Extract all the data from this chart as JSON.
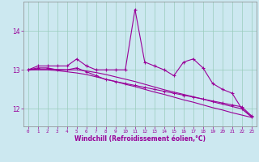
{
  "xlabel": "Windchill (Refroidissement éolien,°C)",
  "bg_color": "#cce8f0",
  "line_color": "#990099",
  "grid_color": "#99ccbb",
  "yticks": [
    12,
    13,
    14
  ],
  "ylim": [
    11.55,
    14.75
  ],
  "xlim": [
    -0.5,
    23.5
  ],
  "xtick_labels": [
    "0",
    "1",
    "2",
    "3",
    "4",
    "5",
    "6",
    "7",
    "8",
    "9",
    "10",
    "11",
    "12",
    "13",
    "14",
    "15",
    "16",
    "17",
    "18",
    "19",
    "20",
    "21",
    "22",
    "23"
  ],
  "line1": [
    13.0,
    13.1,
    13.1,
    13.1,
    13.1,
    13.28,
    13.1,
    13.0,
    13.0,
    13.0,
    13.0,
    14.55,
    13.2,
    13.1,
    13.0,
    12.85,
    13.2,
    13.28,
    13.05,
    12.65,
    12.5,
    12.4,
    12.0,
    11.8
  ],
  "line2": [
    13.0,
    13.05,
    13.05,
    13.0,
    13.0,
    13.05,
    12.95,
    12.85,
    12.75,
    12.7,
    12.65,
    12.6,
    12.55,
    12.5,
    12.45,
    12.4,
    12.35,
    12.3,
    12.25,
    12.2,
    12.15,
    12.1,
    12.05,
    11.82
  ],
  "line3": [
    13.0,
    13.0,
    13.0,
    12.98,
    12.95,
    12.92,
    12.88,
    12.82,
    12.76,
    12.7,
    12.63,
    12.57,
    12.5,
    12.43,
    12.37,
    12.3,
    12.23,
    12.17,
    12.1,
    12.03,
    11.97,
    11.9,
    11.84,
    11.78
  ],
  "line4": [
    13.0,
    13.02,
    13.02,
    13.01,
    13.0,
    13.0,
    12.97,
    12.93,
    12.88,
    12.82,
    12.76,
    12.7,
    12.63,
    12.56,
    12.49,
    12.43,
    12.37,
    12.31,
    12.25,
    12.18,
    12.12,
    12.06,
    12.0,
    11.79
  ]
}
